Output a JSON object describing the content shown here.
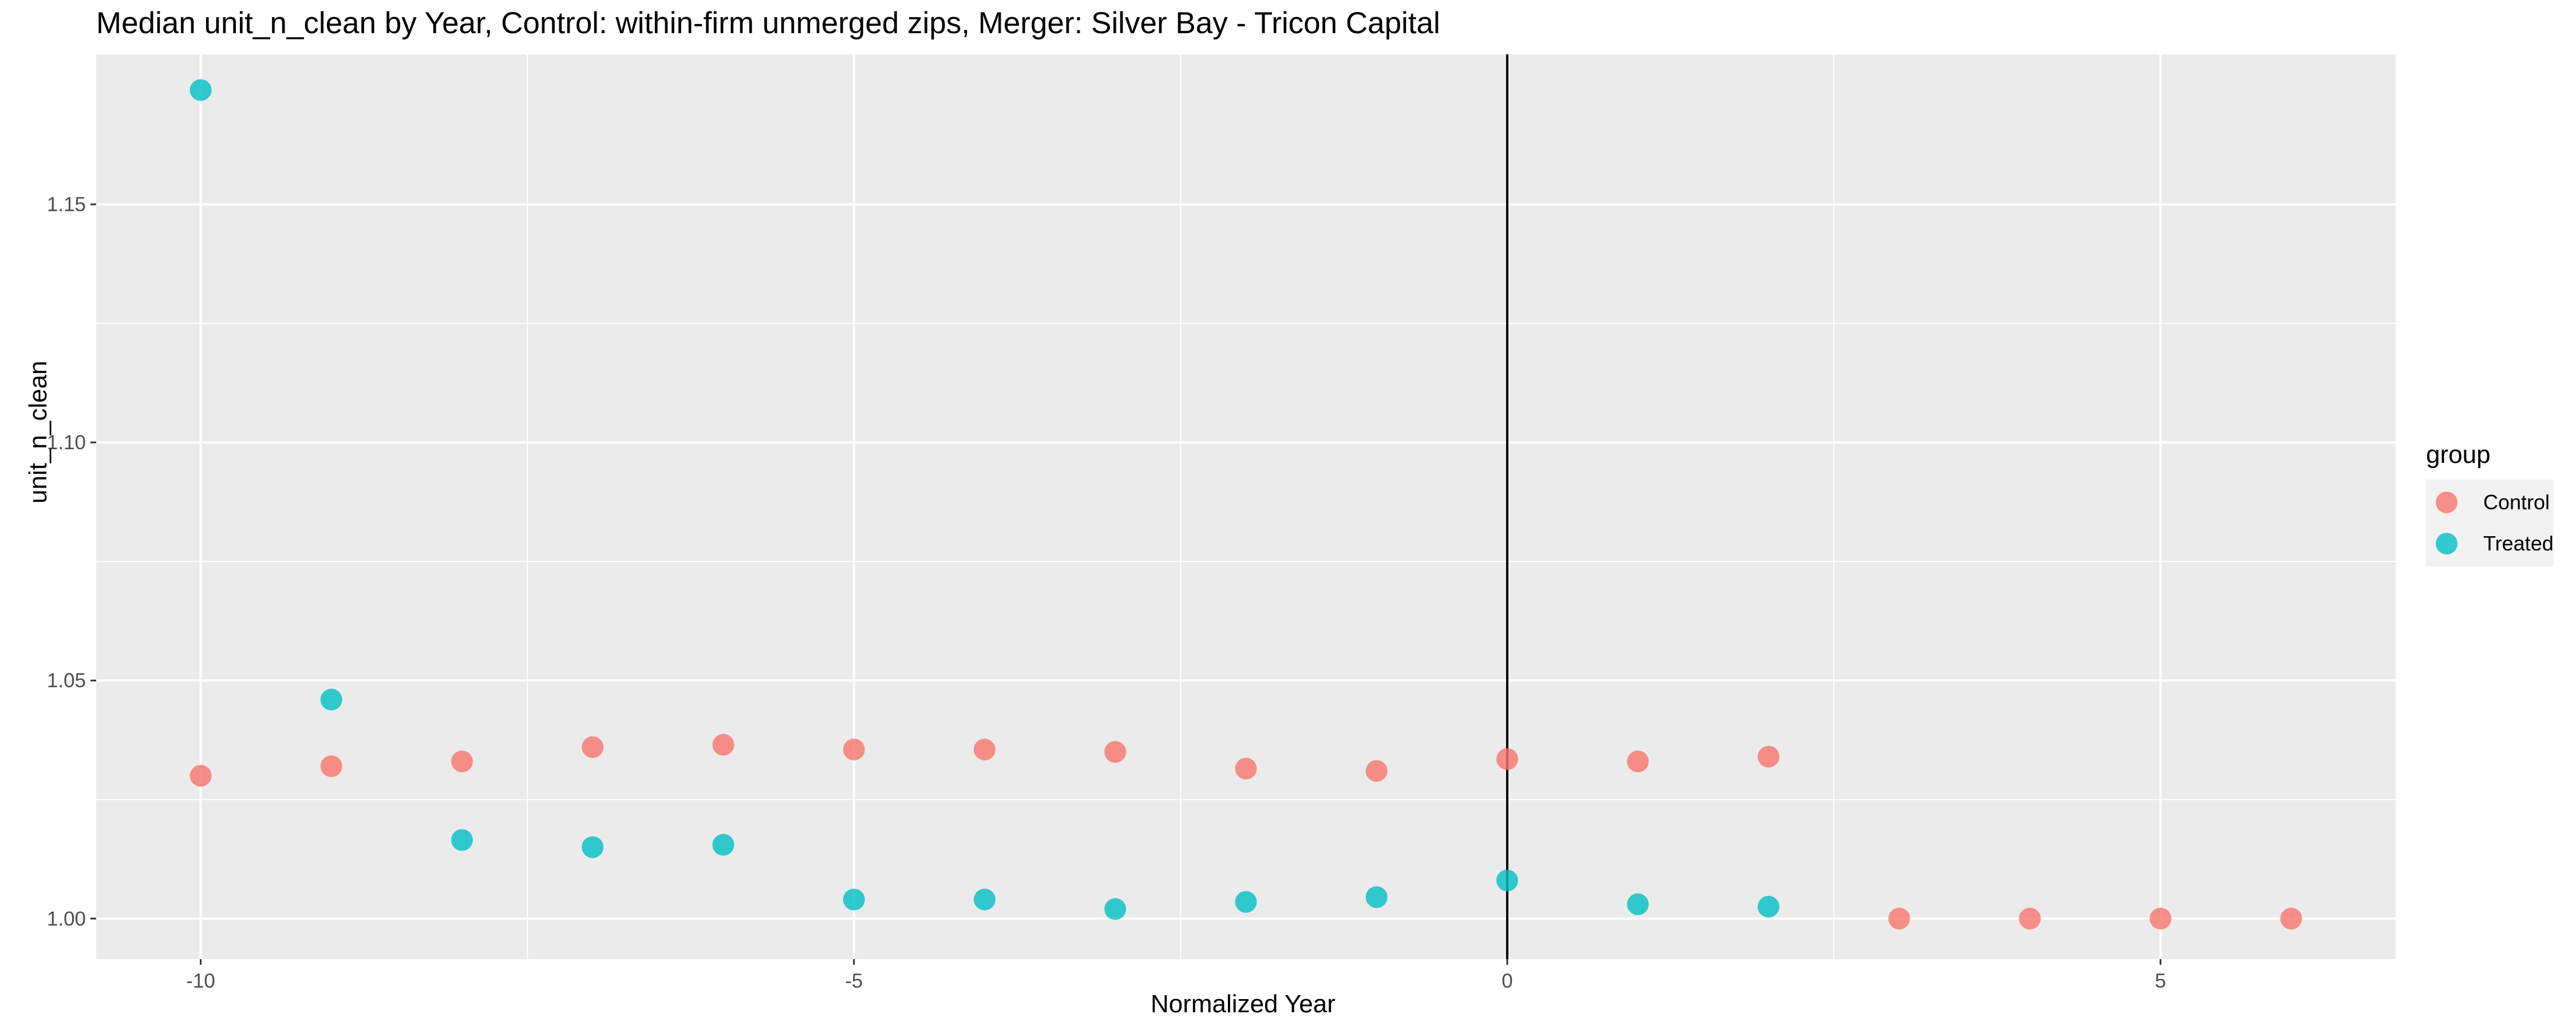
{
  "chart_data": {
    "type": "scatter",
    "title": "Median unit_n_clean by Year, Control: within-firm unmerged zips, Merger: Silver Bay - Tricon Capital",
    "xlabel": "Normalized Year",
    "ylabel": "unit_n_clean",
    "xlim": [
      -10.8,
      6.8
    ],
    "ylim": [
      0.9915,
      1.1815
    ],
    "x_ticks": [
      -10,
      -5,
      0,
      5
    ],
    "x_tick_labels": [
      "-10",
      "-5",
      "0",
      "5"
    ],
    "y_ticks": [
      1.0,
      1.05,
      1.1,
      1.15
    ],
    "y_tick_labels": [
      "1.00",
      "1.05",
      "1.10",
      "1.15"
    ],
    "vline_x": 0,
    "grid": true,
    "legend_title": "group",
    "legend_position": "right",
    "series": [
      {
        "name": "Control",
        "color": "#F8766D",
        "points": [
          [
            -10,
            1.03
          ],
          [
            -9,
            1.032
          ],
          [
            -8,
            1.033
          ],
          [
            -7,
            1.036
          ],
          [
            -6,
            1.0365
          ],
          [
            -5,
            1.0355
          ],
          [
            -4,
            1.0355
          ],
          [
            -3,
            1.035
          ],
          [
            -2,
            1.0315
          ],
          [
            -1,
            1.031
          ],
          [
            0,
            1.0335
          ],
          [
            1,
            1.033
          ],
          [
            2,
            1.034
          ],
          [
            3,
            1.0
          ],
          [
            4,
            1.0
          ],
          [
            5,
            1.0
          ],
          [
            6,
            1.0
          ]
        ]
      },
      {
        "name": "Treated",
        "color": "#00BFC4",
        "points": [
          [
            -10,
            1.174
          ],
          [
            -9,
            1.046
          ],
          [
            -8,
            1.0165
          ],
          [
            -7,
            1.015
          ],
          [
            -6,
            1.0155
          ],
          [
            -5,
            1.004
          ],
          [
            -4,
            1.004
          ],
          [
            -3,
            1.002
          ],
          [
            -2,
            1.0035
          ],
          [
            -1,
            1.0045
          ],
          [
            0,
            1.008
          ],
          [
            1,
            1.003
          ],
          [
            2,
            1.0025
          ]
        ]
      }
    ]
  }
}
